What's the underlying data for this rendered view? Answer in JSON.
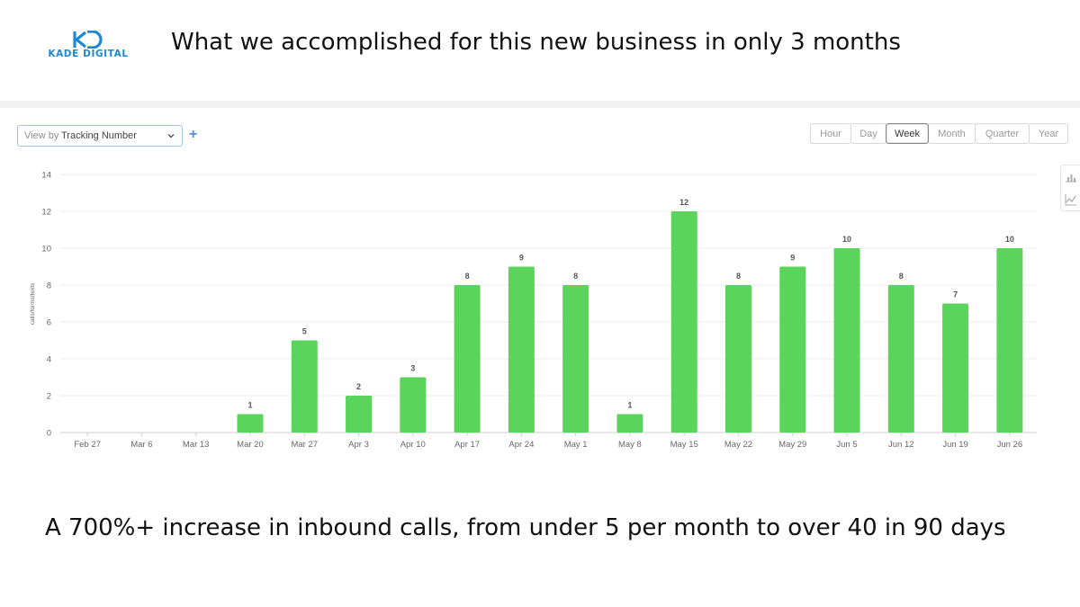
{
  "brand": {
    "logo_text": "KADE DIGITAL",
    "color": "#1e88d6"
  },
  "header": {
    "title": "What we accomplished for this new business in only 3 months"
  },
  "toolbar": {
    "view_prefix": "View by",
    "view_value": "Tracking Number",
    "add_label": "+",
    "ranges": [
      "Hour",
      "Day",
      "Week",
      "Month",
      "Quarter",
      "Year"
    ],
    "active_range": "Week"
  },
  "side_tools": [
    "bar-chart-icon",
    "line-chart-icon"
  ],
  "chart_data": {
    "type": "bar",
    "title": "",
    "xlabel": "",
    "ylabel": "calls/forms/texts",
    "categories": [
      "Feb 27",
      "Mar 6",
      "Mar 13",
      "Mar 20",
      "Mar 27",
      "Apr 3",
      "Apr 10",
      "Apr 17",
      "Apr 24",
      "May 1",
      "May 8",
      "May 15",
      "May 22",
      "May 29",
      "Jun 5",
      "Jun 12",
      "Jun 19",
      "Jun 26"
    ],
    "values": [
      0,
      0,
      0,
      1,
      5,
      2,
      3,
      8,
      9,
      8,
      1,
      12,
      8,
      9,
      10,
      8,
      7,
      10
    ],
    "data_labels_for_zero": false,
    "ylim": [
      0,
      14
    ],
    "yticks": [
      0,
      2,
      4,
      6,
      8,
      10,
      12,
      14
    ],
    "grid": true,
    "bar_color": "#5bd45b"
  },
  "footer": {
    "tagline": "A 700%+ increase in inbound calls, from under 5 per month to over 40 in 90 days"
  }
}
